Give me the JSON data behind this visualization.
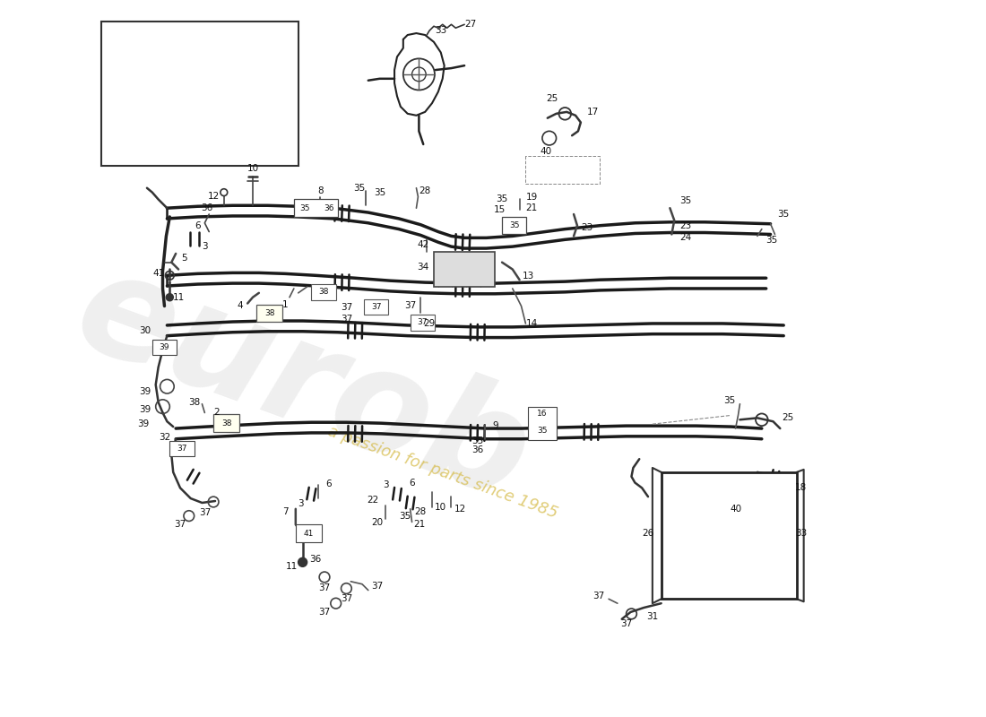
{
  "bg_color": "#ffffff",
  "line_color": "#1a1a1a",
  "label_color": "#111111",
  "watermark_color_gray": "#c8c8c8",
  "watermark_color_yellow": "#d4b840",
  "fig_w": 11.0,
  "fig_h": 8.0,
  "lw_thick": 2.5,
  "lw_med": 1.8,
  "lw_thin": 1.2,
  "lw_hair": 0.8,
  "fs_label": 7.5,
  "fs_small": 6.5
}
